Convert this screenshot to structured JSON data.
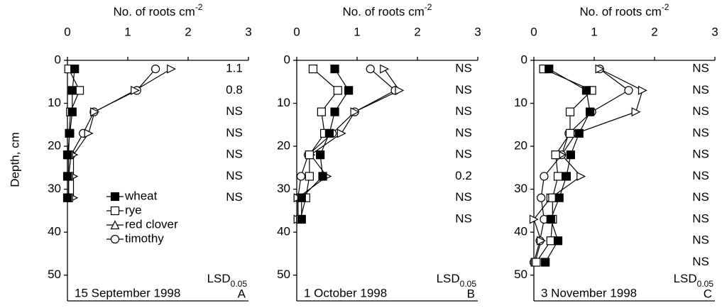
{
  "chart_data": [
    {
      "type": "line",
      "panel": "A",
      "date": "15 September 1998",
      "x_label": {
        "text": "No. of roots cm",
        "sup": "-2"
      },
      "y_label": "Depth, cm",
      "xlim": [
        0,
        3
      ],
      "xticks": [
        0,
        1,
        2,
        3
      ],
      "ylim": [
        0,
        56
      ],
      "yticks": [
        0,
        10,
        20,
        30,
        40,
        50
      ],
      "y": [
        2,
        7,
        12,
        17,
        22,
        27,
        32
      ],
      "series": [
        {
          "name": "wheat",
          "color": "#000000",
          "marker": "filled-square",
          "values": [
            0.12,
            0.08,
            0.08,
            0.04,
            0.0,
            0.0,
            0.0
          ]
        },
        {
          "name": "rye",
          "color": "#000000",
          "marker": "open-square",
          "values": [
            0.02,
            0.2,
            0.05,
            0.03,
            0.02,
            0.02,
            0.02
          ]
        },
        {
          "name": "red clover",
          "color": "#000000",
          "marker": "open-triangle",
          "values": [
            1.72,
            1.12,
            0.45,
            0.35,
            0.1,
            0.1,
            0.1
          ]
        },
        {
          "name": "timothy",
          "color": "#000000",
          "marker": "open-circle",
          "values": [
            1.46,
            1.15,
            0.44,
            0.26,
            0.06,
            0.02,
            0.02
          ]
        }
      ],
      "lsd_label": {
        "text": "LSD",
        "sub": "0.05"
      },
      "lsd": [
        1.1,
        0.8,
        "NS",
        "NS",
        "NS",
        "NS",
        "NS"
      ],
      "legend": "center"
    },
    {
      "type": "line",
      "panel": "B",
      "date": "1 October 1998",
      "x_label": {
        "text": "No. of roots cm",
        "sup": "-2"
      },
      "xlim": [
        0,
        3
      ],
      "xticks": [
        0,
        1,
        2,
        3
      ],
      "ylim": [
        0,
        56
      ],
      "yticks": [
        0,
        10,
        20,
        30,
        40,
        50
      ],
      "y": [
        2,
        7,
        12,
        17,
        22,
        27,
        32,
        37
      ],
      "series": [
        {
          "name": "wheat",
          "color": "#000000",
          "marker": "filled-square",
          "values": [
            0.63,
            0.86,
            0.63,
            0.54,
            0.39,
            0.43,
            0.08,
            0.08
          ]
        },
        {
          "name": "rye",
          "color": "#000000",
          "marker": "open-square",
          "values": [
            0.27,
            0.68,
            0.41,
            0.46,
            0.21,
            0.21,
            0.15,
            0.06
          ]
        },
        {
          "name": "red clover",
          "color": "#000000",
          "marker": "open-triangle",
          "values": [
            1.45,
            1.7,
            0.96,
            0.74,
            0.23,
            0.5,
            0.02,
            0.02
          ]
        },
        {
          "name": "timothy",
          "color": "#000000",
          "marker": "open-circle",
          "values": [
            1.22,
            1.63,
            0.96,
            0.59,
            0.19,
            0.07,
            0.02,
            0.02
          ]
        }
      ],
      "lsd_label": {
        "text": "LSD",
        "sub": "0.05"
      },
      "lsd": [
        "NS",
        "NS",
        "NS",
        "NS",
        "NS",
        0.2,
        "NS",
        "NS"
      ]
    },
    {
      "type": "line",
      "panel": "C",
      "date": "3 November 1998",
      "x_label": {
        "text": "No. of roots cm",
        "sup": "-2"
      },
      "xlim": [
        0,
        3
      ],
      "xticks": [
        0,
        1,
        2,
        3
      ],
      "ylim": [
        0,
        56
      ],
      "yticks": [
        0,
        10,
        20,
        30,
        40,
        50
      ],
      "y": [
        2,
        7,
        12,
        17,
        22,
        27,
        32,
        37,
        42,
        47
      ],
      "series": [
        {
          "name": "wheat",
          "color": "#000000",
          "marker": "filled-square",
          "values": [
            0.25,
            0.87,
            0.93,
            0.75,
            0.61,
            0.54,
            0.42,
            0.28,
            0.4,
            0.19
          ]
        },
        {
          "name": "rye",
          "color": "#000000",
          "marker": "open-square",
          "values": [
            0.16,
            0.96,
            0.6,
            0.6,
            0.36,
            0.4,
            0.31,
            0.31,
            0.28,
            0.04
          ]
        },
        {
          "name": "red clover",
          "color": "#000000",
          "marker": "open-triangle",
          "values": [
            1.09,
            1.8,
            1.69,
            0.7,
            0.46,
            0.78,
            0.28,
            0.0,
            0.12,
            0.02
          ]
        },
        {
          "name": "timothy",
          "color": "#000000",
          "marker": "open-circle",
          "values": [
            1.09,
            1.57,
            0.96,
            0.58,
            0.46,
            0.17,
            0.12,
            0.17,
            0.1,
            0.0
          ]
        }
      ],
      "lsd_label": {
        "text": "LSD",
        "sub": "0.05"
      },
      "lsd": [
        "NS",
        "NS",
        "NS",
        "NS",
        "NS",
        "NS",
        "NS",
        "NS",
        "NS",
        "NS"
      ]
    }
  ]
}
